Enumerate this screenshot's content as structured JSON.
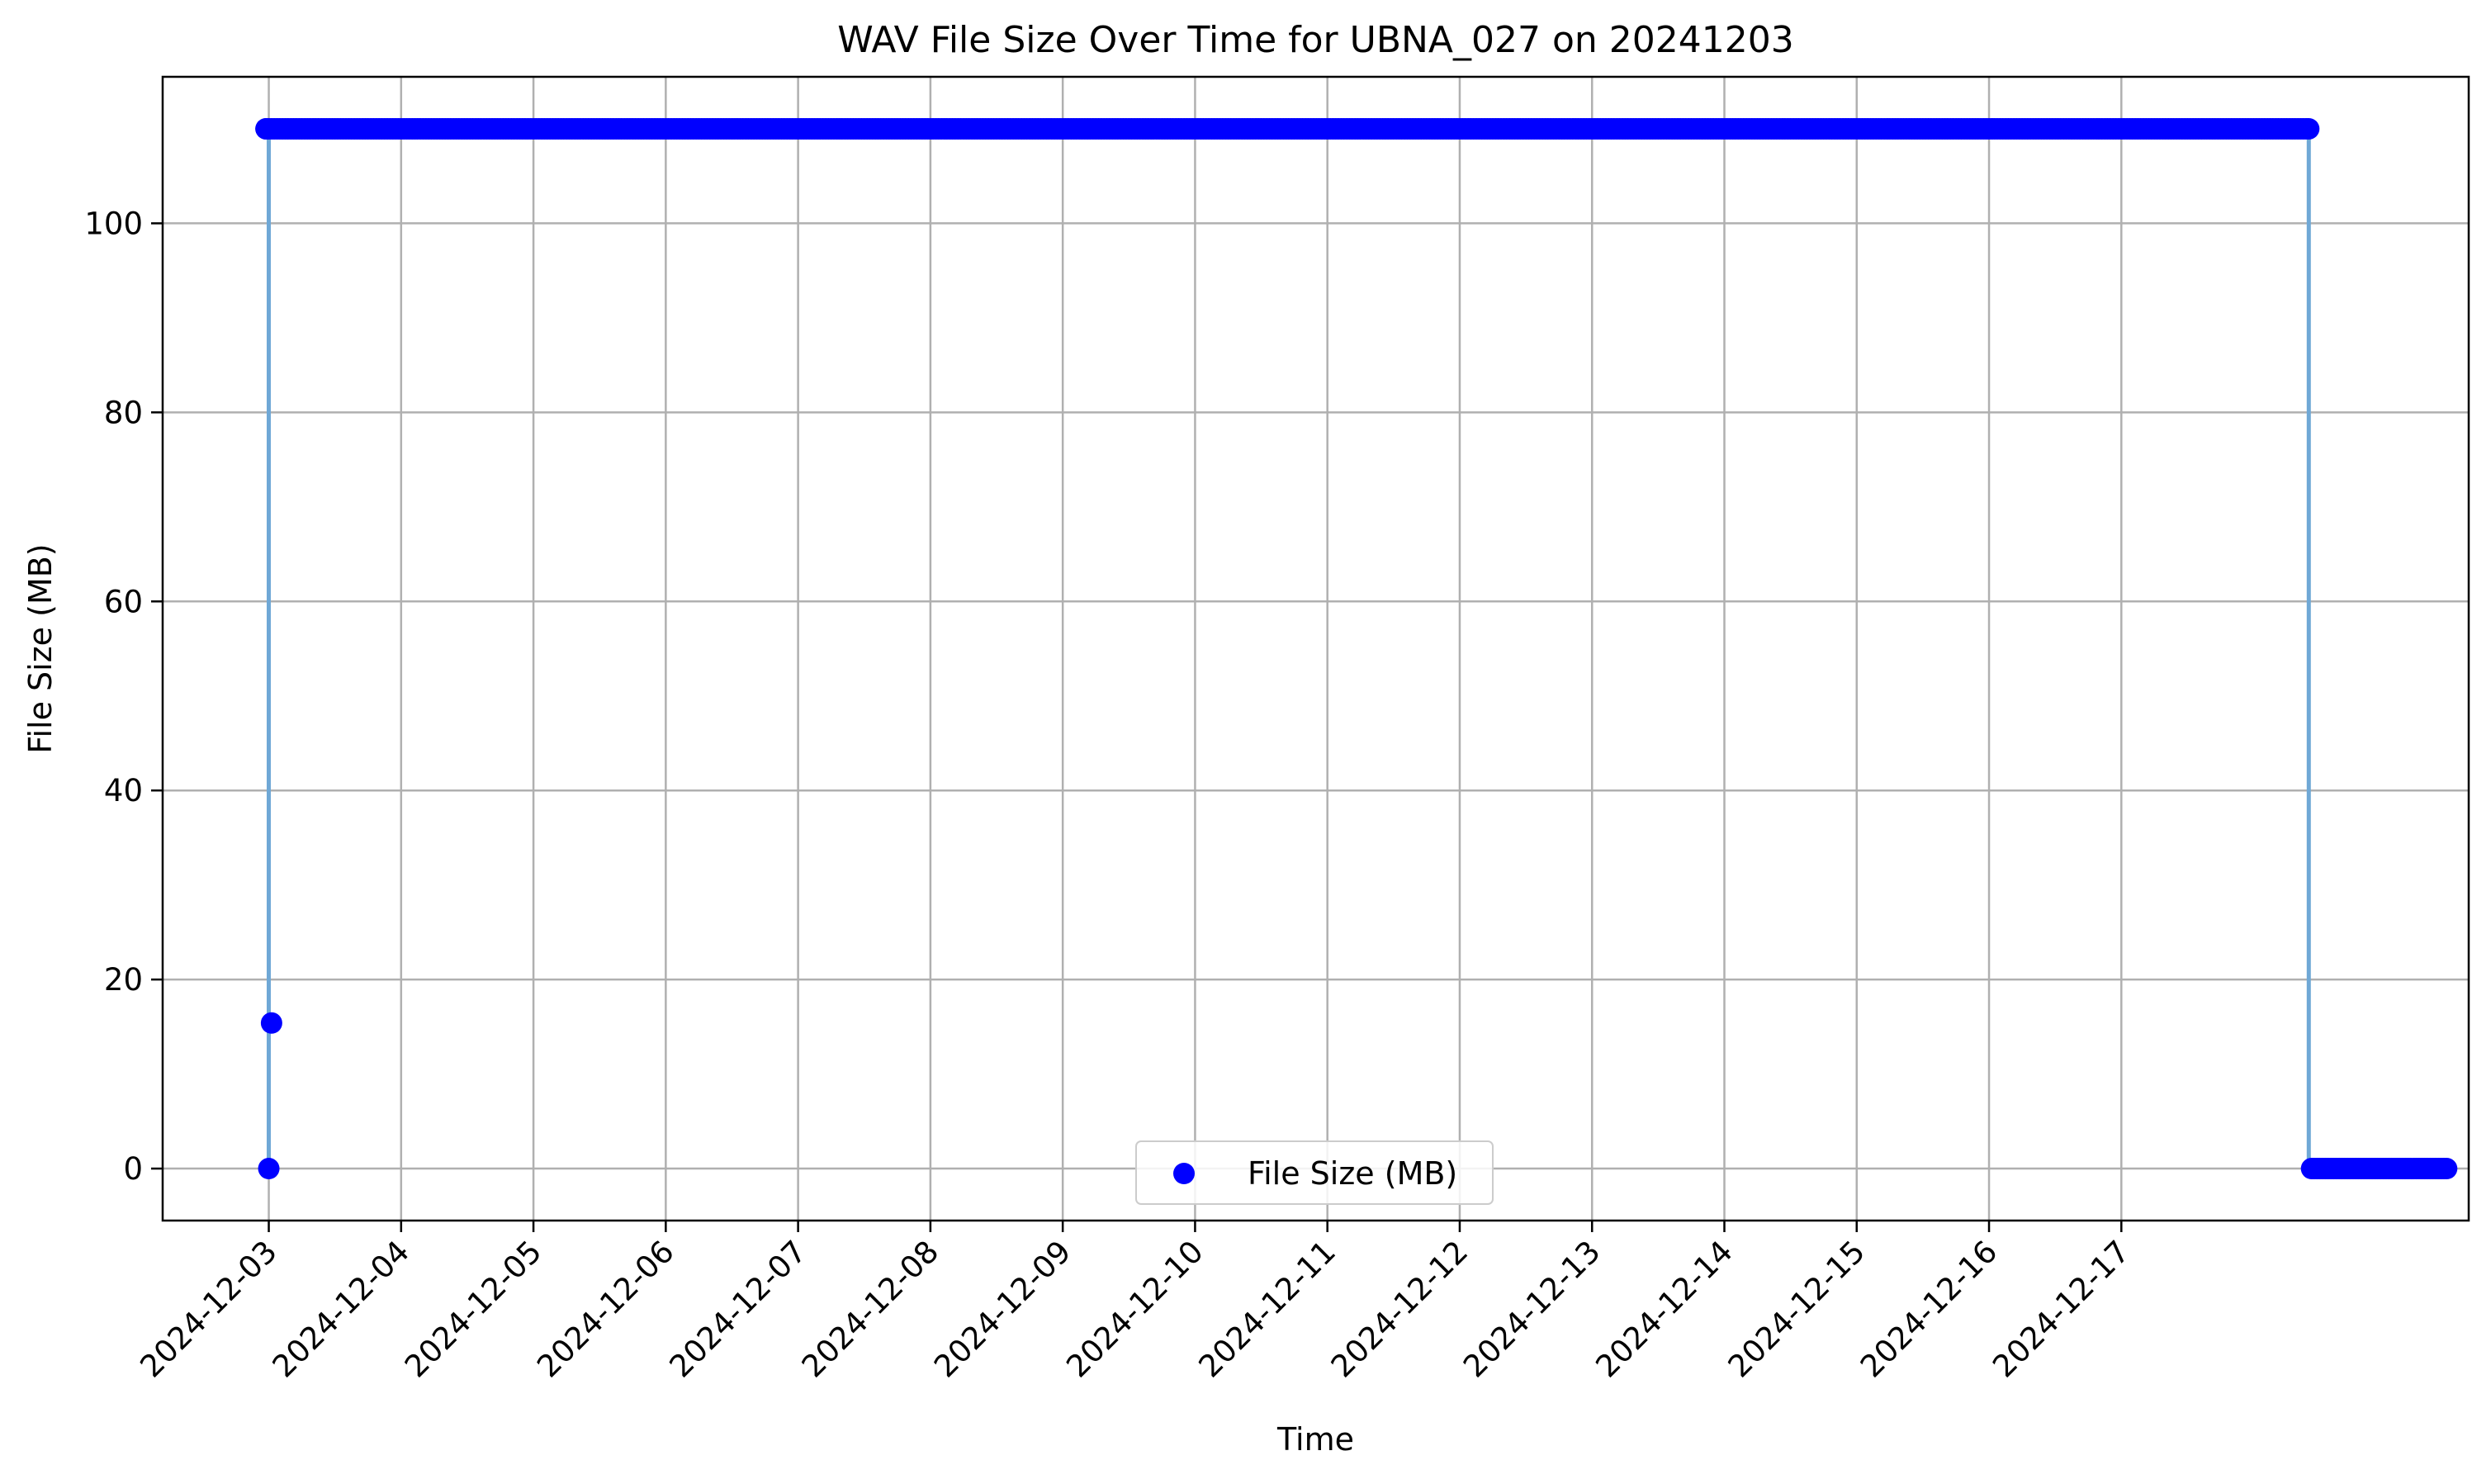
{
  "chart_data": {
    "type": "scatter",
    "title": "WAV File Size Over Time for UBNA_027 on 20241203",
    "xlabel": "Time",
    "ylabel": "File Size (MB)",
    "xlim": [
      "2024-12-02T04:45",
      "2024-12-19T15:00"
    ],
    "ylim": [
      -5.5,
      115.5
    ],
    "x_ticks": [
      "2024-12-03",
      "2024-12-04",
      "2024-12-05",
      "2024-12-06",
      "2024-12-07",
      "2024-12-08",
      "2024-12-09",
      "2024-12-10",
      "2024-12-11",
      "2024-12-12",
      "2024-12-13",
      "2024-12-14",
      "2024-12-15",
      "2024-12-16",
      "2024-12-17"
    ],
    "y_ticks": [
      0,
      20,
      40,
      60,
      80,
      100
    ],
    "grid": true,
    "legend": {
      "position": "lower center",
      "entries": [
        "File Size (MB)"
      ]
    },
    "colors": {
      "points": "#0000ff",
      "line": "#6fa8d6",
      "grid": "#b0b0b0"
    },
    "series": [
      {
        "name": "File Size (MB)",
        "points": [
          {
            "x": "2024-12-03T00:00",
            "y": 0
          },
          {
            "x": "2024-12-03T00:30",
            "y": 15.4
          },
          {
            "x": "2024-12-02T23:30",
            "y": 110
          }
        ],
        "runs": [
          {
            "from": "2024-12-02T23:30",
            "to": "2024-12-18T10:00",
            "step_minutes": 30,
            "y": 110
          },
          {
            "from": "2024-12-18T10:30",
            "to": "2024-12-19T11:00",
            "step_minutes": 30,
            "y": 0
          }
        ],
        "line_path": [
          {
            "x": "2024-12-03T00:00",
            "y": 0
          },
          {
            "x": "2024-12-03T00:00",
            "y": 110
          },
          {
            "x": "2024-12-18T10:00",
            "y": 110
          },
          {
            "x": "2024-12-18T10:00",
            "y": 0
          },
          {
            "x": "2024-12-19T11:00",
            "y": 0
          }
        ]
      }
    ]
  }
}
